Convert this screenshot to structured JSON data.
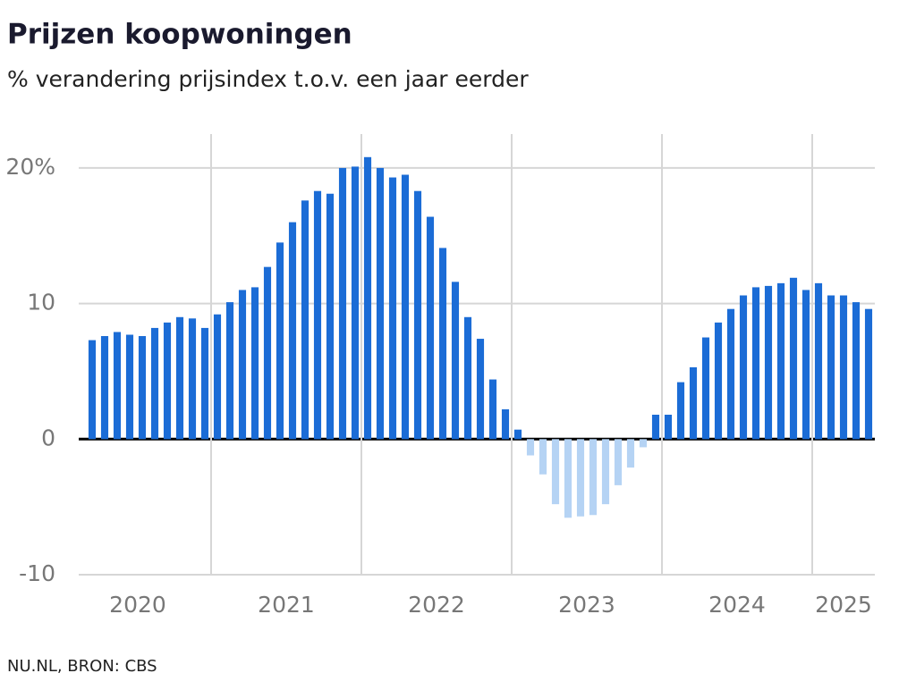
{
  "chart_data": {
    "type": "bar",
    "title": "Prijzen koopwoningen",
    "subtitle": "% verandering prijsindex t.o.v. een jaar eerder",
    "source": "NU.NL, BRON: CBS",
    "categories": [
      null,
      null,
      null,
      null,
      null,
      null,
      null,
      null,
      null,
      null,
      null,
      null,
      null,
      null,
      null,
      null,
      null,
      null,
      null,
      null,
      null,
      null,
      null,
      null,
      null,
      null,
      null,
      null,
      null,
      null,
      null,
      null,
      null,
      null,
      null,
      null,
      null,
      null,
      null,
      null,
      null,
      null,
      null,
      null,
      null,
      null,
      null,
      null,
      null,
      null,
      null,
      null,
      null,
      null,
      null,
      null,
      null,
      null,
      null,
      null,
      null,
      null,
      null
    ],
    "values": [
      7.3,
      7.6,
      7.9,
      7.7,
      7.6,
      8.2,
      8.6,
      9.0,
      8.9,
      8.2,
      9.2,
      10.1,
      11.0,
      11.2,
      12.7,
      14.5,
      16.0,
      17.6,
      18.3,
      18.1,
      20.0,
      20.1,
      20.8,
      20.0,
      19.3,
      19.5,
      18.3,
      16.4,
      14.1,
      11.6,
      9.0,
      7.4,
      4.4,
      2.2,
      0.7,
      -1.2,
      -2.6,
      -4.8,
      -5.8,
      -5.7,
      -5.6,
      -4.8,
      -3.4,
      -2.1,
      -0.6,
      1.8,
      1.8,
      4.2,
      5.3,
      7.5,
      8.6,
      9.6,
      10.6,
      11.2,
      11.3,
      11.5,
      11.9,
      11.0,
      11.5,
      10.6,
      10.6,
      10.1,
      9.6
    ],
    "color": "#1b6cd6",
    "negative_color": "#b5d3f4",
    "xlim": [
      2020.1667,
      2025.4167
    ],
    "xticks": [
      2020,
      2021,
      2022,
      2023,
      2024,
      2025
    ],
    "ylim": [
      -10,
      22.5
    ],
    "yticks": [
      -10,
      0,
      10,
      {
        "value": 20,
        "label": "20%"
      }
    ],
    "grid": true
  }
}
